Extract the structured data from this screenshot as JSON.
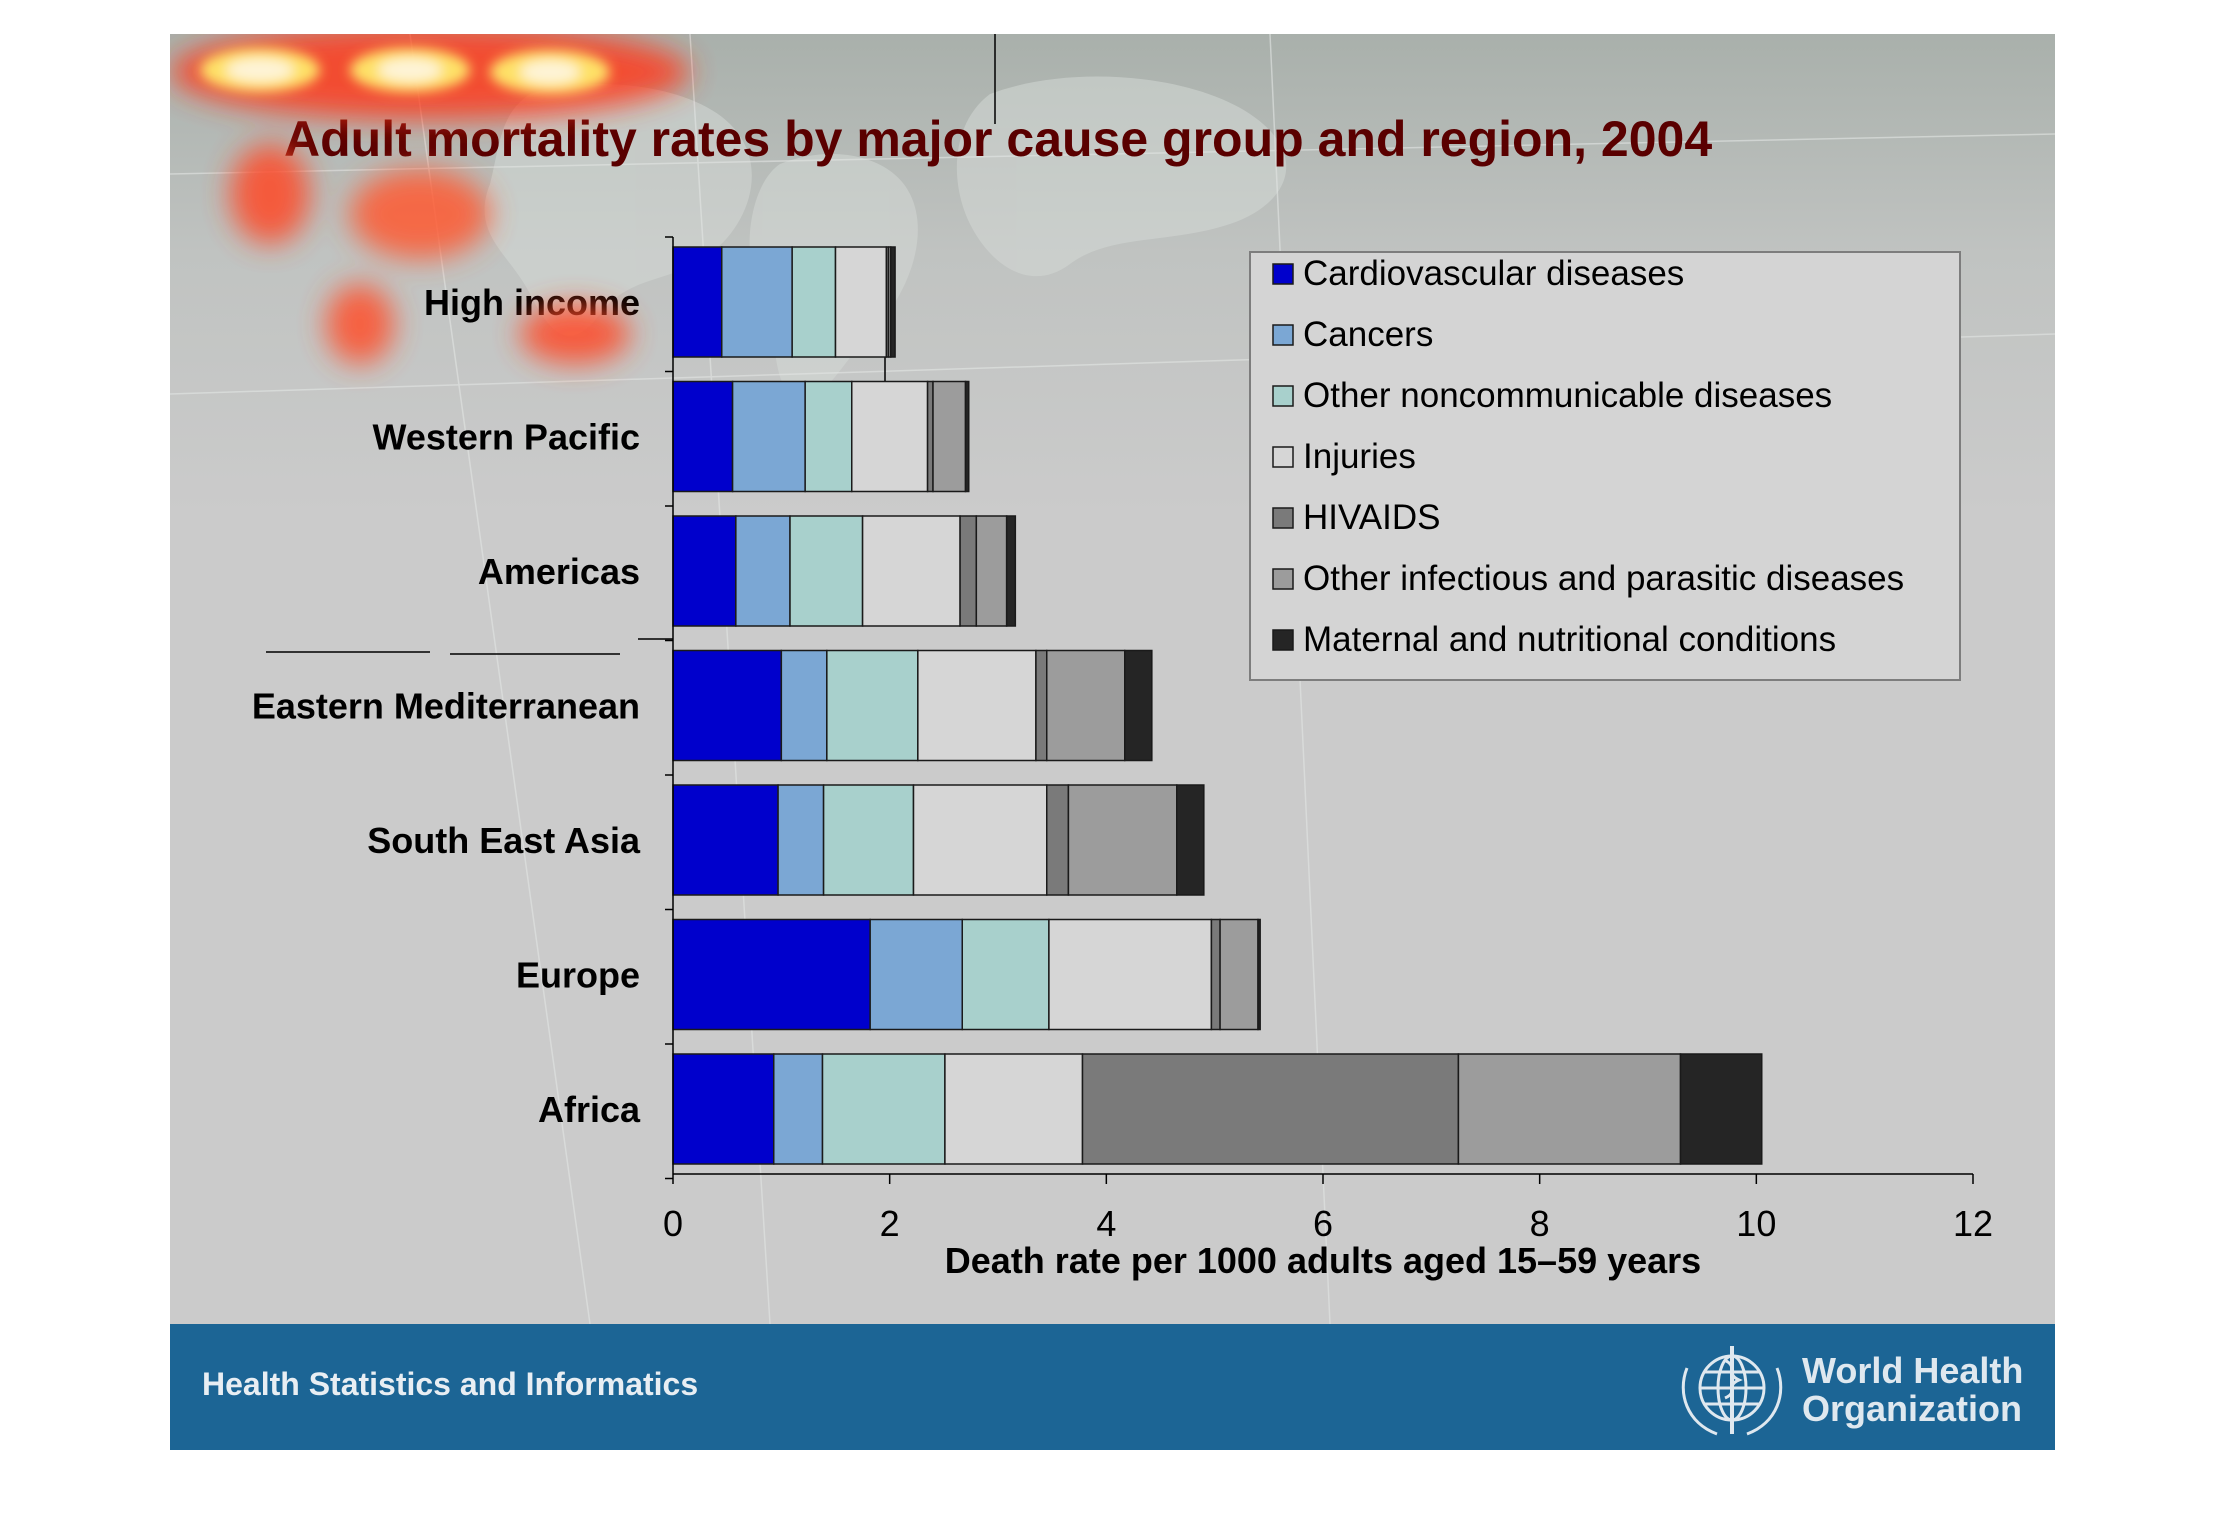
{
  "footer": {
    "left_text": "Health Statistics and Informatics",
    "org_line1": "World Health",
    "org_line2": "Organization",
    "bar_color": "#1c6595"
  },
  "chart_data": {
    "type": "bar",
    "orientation": "horizontal",
    "stacked": true,
    "title": "Adult mortality rates by major cause group and region, 2004",
    "xlabel": "Death rate per 1000 adults aged 15–59 years",
    "ylabel": "",
    "xlim": [
      0,
      12
    ],
    "xticks": [
      0,
      2,
      4,
      6,
      8,
      10,
      12
    ],
    "grid": false,
    "legend_position": "top-right",
    "categories": [
      "High income",
      "Western Pacific",
      "Americas",
      "Eastern Mediterranean",
      "South East Asia",
      "Europe",
      "Africa"
    ],
    "series": [
      {
        "name": "Cardiovascular diseases",
        "color": "#0000cc",
        "values": [
          0.45,
          0.55,
          0.58,
          1.0,
          0.97,
          1.82,
          0.93
        ]
      },
      {
        "name": "Cancers",
        "color": "#7ba7d4",
        "values": [
          0.65,
          0.67,
          0.5,
          0.42,
          0.42,
          0.85,
          0.45
        ]
      },
      {
        "name": "Other noncommunicable diseases",
        "color": "#a8d0cc",
        "values": [
          0.4,
          0.43,
          0.67,
          0.84,
          0.83,
          0.8,
          1.13
        ]
      },
      {
        "name": "Injuries",
        "color": "#d6d6d6",
        "values": [
          0.47,
          0.7,
          0.9,
          1.09,
          1.23,
          1.5,
          1.27
        ]
      },
      {
        "name": "HIVAIDS",
        "color": "#7a7a7a",
        "values": [
          0.02,
          0.05,
          0.15,
          0.1,
          0.2,
          0.08,
          3.47
        ]
      },
      {
        "name": "Other infectious and parasitic diseases",
        "color": "#9c9c9c",
        "values": [
          0.02,
          0.3,
          0.28,
          0.72,
          1.0,
          0.35,
          2.05
        ]
      },
      {
        "name": "Maternal and nutritional conditions",
        "color": "#252525",
        "values": [
          0.04,
          0.03,
          0.08,
          0.25,
          0.25,
          0.02,
          0.75
        ]
      }
    ]
  }
}
